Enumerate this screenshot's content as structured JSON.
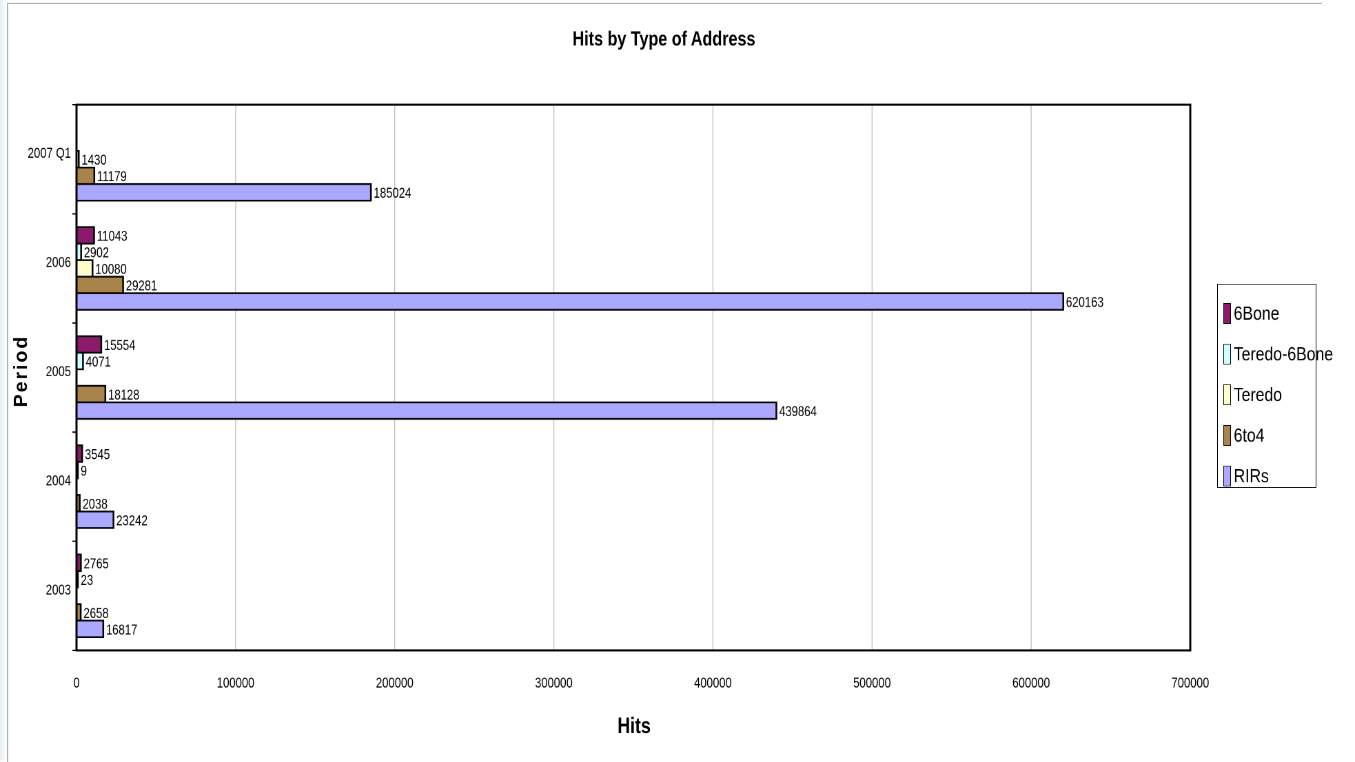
{
  "chart_data": {
    "type": "bar",
    "orientation": "horizontal",
    "title": "Hits by Type of Address",
    "xlabel": "Hits",
    "ylabel": "Period",
    "xlim": [
      0,
      700000
    ],
    "x_ticks": [
      0,
      100000,
      200000,
      300000,
      400000,
      500000,
      600000,
      700000
    ],
    "grid": true,
    "legend_position": "right",
    "categories": [
      "2003",
      "2004",
      "2005",
      "2006",
      "2007 Q1"
    ],
    "series": [
      {
        "name": "6Bone",
        "color": "#8b1a6b",
        "values": [
          2765,
          3545,
          15554,
          11043,
          null
        ]
      },
      {
        "name": "Teredo-6Bone",
        "color": "#ccffff",
        "values": [
          23,
          9,
          4071,
          2902,
          null
        ]
      },
      {
        "name": "Teredo",
        "color": "#ffffcc",
        "values": [
          null,
          null,
          null,
          10080,
          1430
        ]
      },
      {
        "name": "6to4",
        "color": "#a8844a",
        "values": [
          2658,
          2038,
          18128,
          29281,
          11179
        ]
      },
      {
        "name": "RIRs",
        "color": "#aaa8ff",
        "values": [
          16817,
          23242,
          439864,
          620163,
          185024
        ]
      }
    ]
  }
}
